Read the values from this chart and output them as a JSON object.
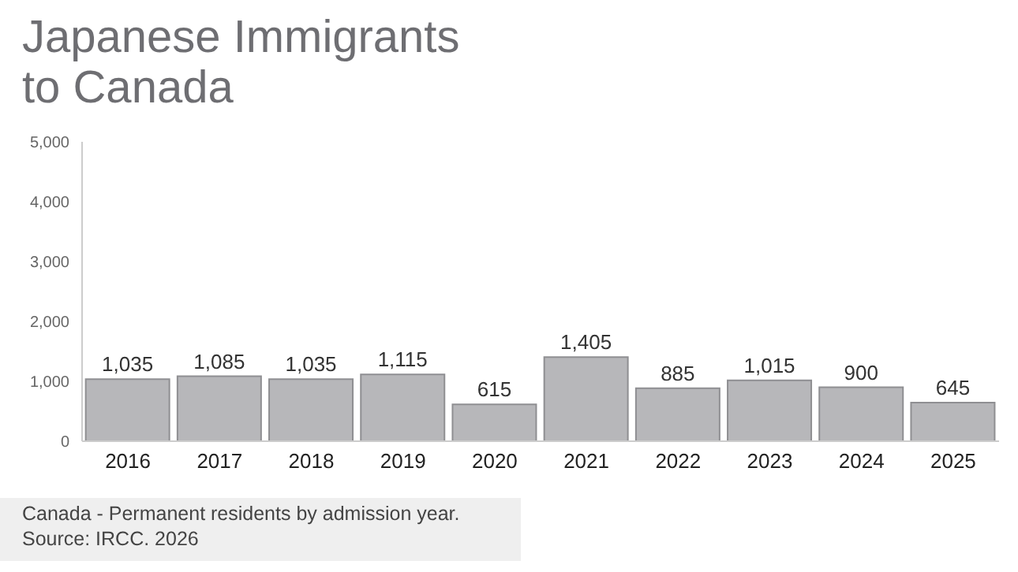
{
  "chart_data": {
    "type": "bar",
    "title": "Japanese Immigrants to Canada",
    "categories": [
      "2016",
      "2017",
      "2018",
      "2019",
      "2020",
      "2021",
      "2022",
      "2023",
      "2024",
      "2025"
    ],
    "values": [
      1035,
      1085,
      1035,
      1115,
      615,
      1405,
      885,
      1015,
      900,
      645
    ],
    "value_labels": [
      "1,035",
      "1,085",
      "1,035",
      "1,115",
      "615",
      "1,405",
      "885",
      "1,015",
      "900",
      "645"
    ],
    "color": "#b7b7ba",
    "ylim": [
      0,
      5000
    ],
    "yticks": [
      0,
      {
        "value": 1000,
        "label": "1,000"
      },
      {
        "value": 2000,
        "label": "2,000"
      },
      {
        "value": 3000,
        "label": "3,000"
      },
      {
        "value": 4000,
        "label": "4,000"
      },
      {
        "value": 5000,
        "label": "5,000"
      }
    ],
    "grid": false,
    "legend": false,
    "annotations": [
      "Canada - Permanent residents by admission year.",
      "Source: IRCC. 2026"
    ]
  }
}
